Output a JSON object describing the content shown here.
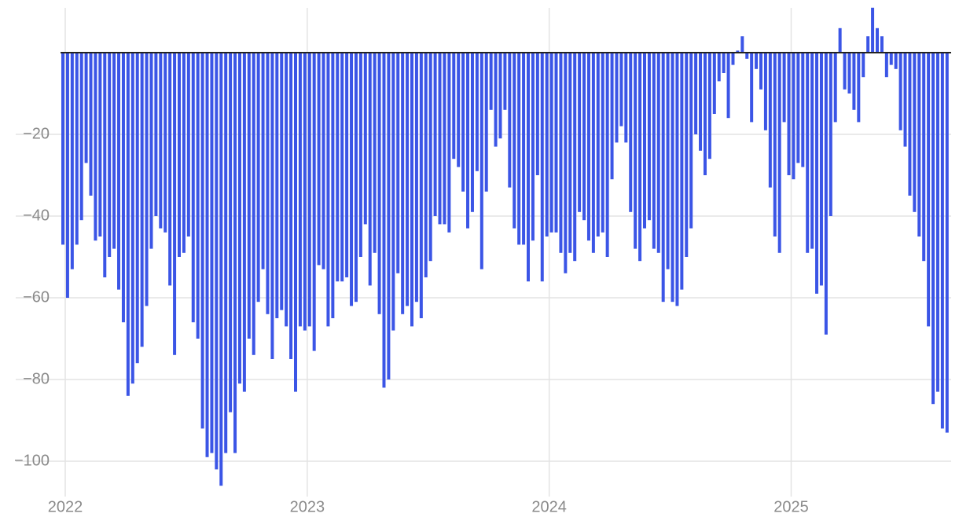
{
  "chart_data": {
    "type": "bar",
    "categories": [
      "2022",
      null,
      null,
      null,
      null,
      null,
      null,
      null,
      null,
      null,
      null,
      null,
      null,
      null,
      null,
      null,
      null,
      null,
      null,
      null,
      null,
      null,
      null,
      null,
      null,
      null,
      null,
      null,
      null,
      null,
      null,
      null,
      null,
      null,
      null,
      null,
      null,
      null,
      null,
      null,
      null,
      null,
      null,
      null,
      null,
      null,
      null,
      null,
      null,
      null,
      null,
      null,
      "2023",
      null,
      null,
      null,
      null,
      null,
      null,
      null,
      null,
      null,
      null,
      null,
      null,
      null,
      null,
      null,
      null,
      null,
      null,
      null,
      null,
      null,
      null,
      null,
      null,
      null,
      null,
      null,
      null,
      null,
      null,
      null,
      null,
      null,
      null,
      null,
      null,
      null,
      null,
      null,
      null,
      null,
      null,
      null,
      null,
      null,
      null,
      null,
      null,
      null,
      null,
      null,
      "2024",
      null,
      null,
      null,
      null,
      null,
      null,
      null,
      null,
      null,
      null,
      null,
      null,
      null,
      null,
      null,
      null,
      null,
      null,
      null,
      null,
      null,
      null,
      null,
      null,
      null,
      null,
      null,
      null,
      null,
      null,
      null,
      null,
      null,
      null,
      null,
      null,
      null,
      null,
      null,
      null,
      null,
      null,
      null,
      null,
      null,
      null,
      null,
      null,
      null,
      null,
      null,
      "2025",
      null,
      null,
      null,
      null,
      null,
      null,
      null,
      null,
      null,
      null,
      null,
      null,
      null,
      null,
      null,
      null,
      null,
      null,
      null,
      null,
      null,
      null,
      null,
      null,
      null,
      null,
      null,
      null,
      null,
      null,
      null,
      null,
      null,
      null
    ],
    "values": [
      -47,
      -60,
      -53,
      -47,
      -41,
      -27,
      -35,
      -46,
      -45,
      -55,
      -50,
      -48,
      -58,
      -66,
      -84,
      -81,
      -76,
      -72,
      -62,
      -48,
      -40,
      -43,
      -44,
      -57,
      -74,
      -50,
      -49,
      -45,
      -66,
      -70,
      -92,
      -99,
      -98,
      -102,
      -106,
      -98,
      -88,
      -98,
      -81,
      -83,
      -70,
      -74,
      -61,
      -53,
      -64,
      -75,
      -65,
      -63,
      -67,
      -75,
      -83,
      -67,
      -68,
      -67,
      -73,
      -52,
      -53,
      -67,
      -65,
      -56,
      -56,
      -55,
      -62,
      -61,
      -50,
      -42,
      -57,
      -49,
      -64,
      -82,
      -80,
      -68,
      -54,
      -64,
      -62,
      -67,
      -61,
      -65,
      -55,
      -51,
      -40,
      -42,
      -42,
      -44,
      -26,
      -28,
      -34,
      -43,
      -39,
      -29,
      -53,
      -34,
      -14,
      -23,
      -21,
      -14,
      -33,
      -43,
      -47,
      -47,
      -56,
      -46,
      -30,
      -56,
      -45,
      -44,
      -44,
      -49,
      -54,
      -49,
      -51,
      -39,
      -41,
      -46,
      -49,
      -45,
      -44,
      -50,
      -31,
      -22,
      -18,
      -22,
      -39,
      -48,
      -51,
      -43,
      -41,
      -48,
      -49,
      -61,
      -53,
      -61,
      -62,
      -58,
      -50,
      -43,
      -20,
      -24,
      -30,
      -26,
      -15,
      -7,
      -5,
      -16,
      -3,
      0.5,
      4,
      -1.5,
      -17,
      -4,
      -9,
      -19,
      -33,
      -45,
      -49,
      -17,
      -30,
      -31,
      -27,
      -28,
      -49,
      -48,
      -59,
      -57,
      -69,
      -40,
      -17,
      6,
      -9,
      -10,
      -14,
      -17,
      -6,
      4,
      11,
      6,
      4,
      -6,
      -3,
      -4,
      -19,
      -23,
      -35,
      -39,
      -45,
      -51,
      -67,
      -86,
      -83,
      -92,
      -93
    ],
    "color": "#3b55e6",
    "ylim": [
      -106,
      11
    ],
    "yticks": [
      {
        "value": -100,
        "label": "−100"
      },
      {
        "value": -80,
        "label": "−80"
      },
      {
        "value": -60,
        "label": "−60"
      },
      {
        "value": -40,
        "label": "−40"
      },
      {
        "value": -20,
        "label": "−20"
      }
    ],
    "grid": true
  }
}
